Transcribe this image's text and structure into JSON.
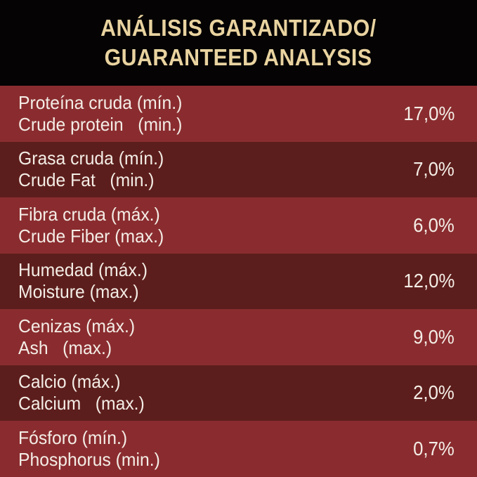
{
  "header": {
    "title_es": "ANÁLISIS GARANTIZADO/",
    "title_en": "GUARANTEED ANALYSIS"
  },
  "table": {
    "rows": [
      [
        "Proteína cruda (mín.)",
        "Crude protein   (min.)",
        "17,0%"
      ],
      [
        "Grasa cruda (mín.)",
        "Crude Fat   (min.)",
        "7,0%"
      ],
      [
        "Fibra cruda (máx.)",
        "Crude Fiber (max.)",
        "6,0%"
      ],
      [
        "Humedad (máx.)",
        "Moisture (max.)",
        "12,0%"
      ],
      [
        "Cenizas (máx.)",
        "Ash   (max.)",
        "9,0%"
      ],
      [
        "Calcio (máx.)",
        "Calcium   (max.)",
        "2,0%"
      ],
      [
        "Fósforo (mín.)",
        "Phosphorus (min.)",
        "0,7%"
      ]
    ]
  }
}
